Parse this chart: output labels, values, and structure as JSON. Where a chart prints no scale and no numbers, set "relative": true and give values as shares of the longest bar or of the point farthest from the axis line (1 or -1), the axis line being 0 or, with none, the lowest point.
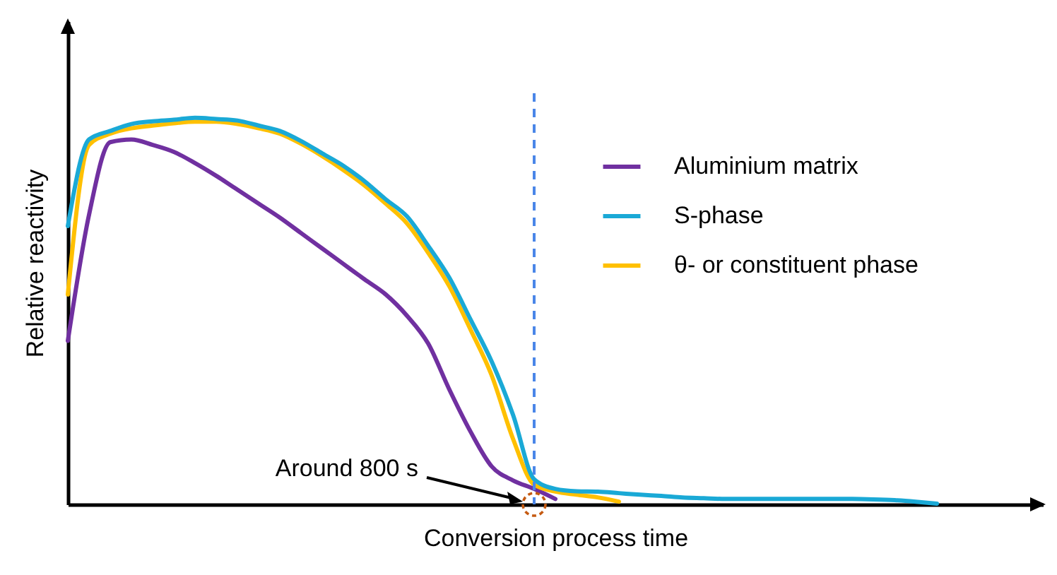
{
  "chart_data": {
    "type": "line",
    "relative": true,
    "xlabel": "Conversion process time",
    "ylabel": "Relative reactivity",
    "legend": "top right",
    "categories": [
      null,
      null,
      null,
      null,
      null,
      null,
      null,
      null,
      null,
      null,
      null,
      null,
      null,
      null,
      null,
      null,
      null,
      null,
      null,
      null,
      null,
      null,
      null,
      null,
      null,
      null,
      null,
      null,
      null,
      null,
      null,
      null,
      null,
      null,
      null,
      null,
      null,
      null,
      null,
      null,
      null,
      null,
      null,
      null,
      null,
      null,
      null
    ],
    "series": [
      {
        "name": "Aluminium matrix",
        "color": "#7030a0",
        "values": [
          0.423,
          0.749,
          0.937,
          0.944,
          0.93,
          0.912,
          0.883,
          0.85,
          0.814,
          0.778,
          0.742,
          0.702,
          0.662,
          0.622,
          0.582,
          0.543,
          0.488,
          0.416,
          0.297,
          0.188,
          0.098,
          0.062,
          0.04,
          0.014,
          null,
          null,
          null,
          null,
          null,
          null,
          null,
          null,
          null,
          null,
          null,
          null,
          null,
          null,
          null,
          null,
          null,
          null,
          null,
          null,
          null,
          null,
          null
        ]
      },
      {
        "name": "S-phase",
        "color": "#1aa9d6",
        "values": [
          0.72,
          0.944,
          0.966,
          0.984,
          0.991,
          0.995,
          1,
          0.997,
          0.993,
          0.98,
          0.966,
          0.94,
          0.908,
          0.876,
          0.836,
          0.789,
          0.745,
          0.669,
          0.586,
          0.478,
          0.369,
          0.232,
          0.065,
          0.04,
          0.034,
          0.033,
          0.029,
          0.025,
          0.022,
          0.018,
          0.016,
          0.014,
          0.014,
          0.014,
          0.014,
          0.014,
          0.014,
          0.014,
          0.013,
          0.011,
          0.007,
          0.002,
          null,
          null,
          null,
          null,
          null
        ]
      },
      {
        "name": "θ- or constituent phase",
        "color": "#ffc000",
        "values": [
          0.543,
          0.93,
          0.959,
          0.973,
          0.98,
          0.986,
          0.99,
          0.99,
          0.984,
          0.973,
          0.959,
          0.933,
          0.901,
          0.865,
          0.825,
          0.778,
          0.727,
          0.651,
          0.564,
          0.452,
          0.333,
          0.17,
          0.051,
          0.033,
          0.025,
          0.018,
          0.007,
          null,
          null,
          null,
          null,
          null,
          null,
          null,
          null,
          null,
          null,
          null,
          null,
          null,
          null,
          null,
          null,
          null,
          null,
          null,
          null
        ]
      }
    ],
    "annotations": [
      "Around 800 s"
    ]
  }
}
